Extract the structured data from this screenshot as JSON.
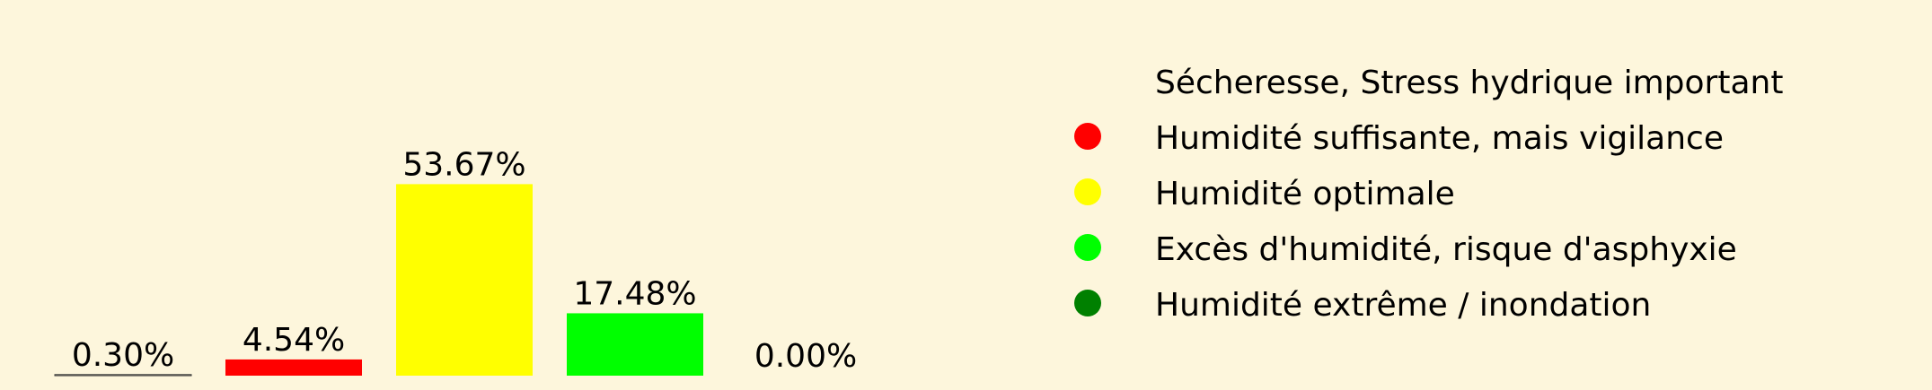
{
  "chart_data": {
    "type": "bar",
    "title": "",
    "xlabel": "",
    "ylabel": "",
    "ylim": [
      0,
      55
    ],
    "grid": false,
    "legend_position": "right",
    "categories": [
      "Sécheresse, Stress hydrique important",
      "Humidité suffisante, mais vigilance",
      "Humidité optimale",
      "Excès d'humidité, risque d'asphyxie",
      "Humidité extrême / inondation"
    ],
    "values": [
      0.3,
      4.54,
      53.67,
      17.48,
      0.0
    ],
    "value_labels": [
      "0.30%",
      "4.54%",
      "53.67%",
      "17.48%",
      "0.00%"
    ],
    "colors": [
      "#fdf6dc",
      "#ff0000",
      "#ffff00",
      "#00ff00",
      "#008000"
    ]
  }
}
